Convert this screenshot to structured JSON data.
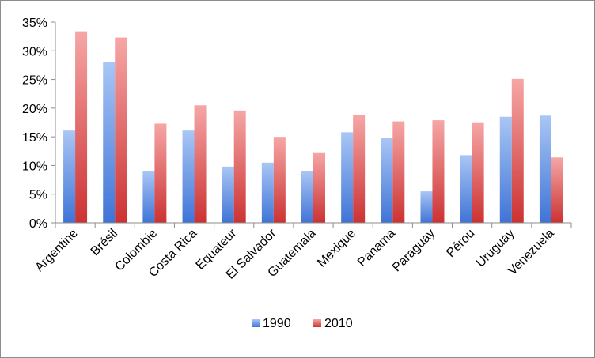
{
  "chart_data": {
    "type": "bar",
    "title": "",
    "xlabel": "",
    "ylabel": "",
    "ylim": [
      0,
      0.35
    ],
    "yticks": [
      "0%",
      "5%",
      "10%",
      "15%",
      "20%",
      "25%",
      "30%",
      "35%"
    ],
    "categories": [
      "Argentine",
      "Brésil",
      "Colombie",
      "Costa Rica",
      "Equateur",
      "El Salvador",
      "Guatemala",
      "Mexique",
      "Panama",
      "Paraguay",
      "Pérou",
      "Uruguay",
      "Venezuela"
    ],
    "series": [
      {
        "name": "1990",
        "color": "#5b8fe0",
        "values": [
          0.161,
          0.281,
          0.09,
          0.161,
          0.098,
          0.105,
          0.09,
          0.158,
          0.148,
          0.055,
          0.118,
          0.185,
          0.187
        ]
      },
      {
        "name": "2010",
        "color": "#e05656",
        "values": [
          0.334,
          0.323,
          0.173,
          0.205,
          0.196,
          0.15,
          0.123,
          0.188,
          0.177,
          0.179,
          0.174,
          0.251,
          0.114
        ]
      }
    ],
    "grid": false,
    "legend": "bottom"
  }
}
